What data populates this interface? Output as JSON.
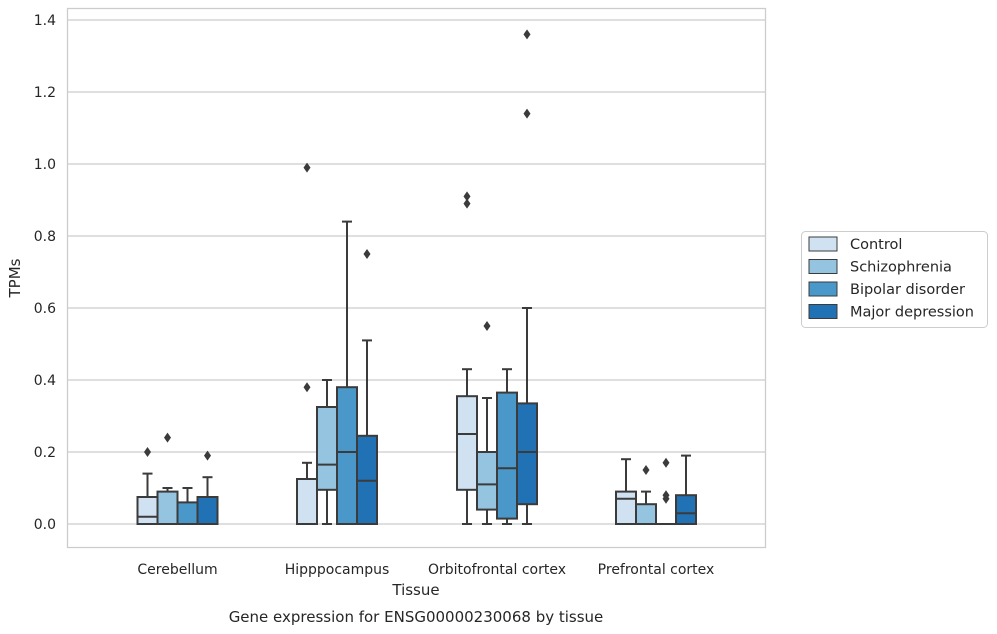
{
  "caption": "Gene expression for ENSG00000230068 by tissue",
  "chart_data": {
    "type": "box",
    "title": "",
    "xlabel": "Tissue",
    "ylabel": "TPMs",
    "ylim": [
      -0.065,
      1.43
    ],
    "yticks": [
      0.0,
      0.2,
      0.4,
      0.6,
      0.8,
      1.0,
      1.2,
      1.4
    ],
    "ytick_labels": [
      "0.0",
      "0.2",
      "0.4",
      "0.6",
      "0.8",
      "1.0",
      "1.2",
      "1.4"
    ],
    "grid": "horizontal",
    "legend_position": "right",
    "categories": [
      "Cerebellum",
      "Hipppocampus",
      "Orbitofrontal cortex",
      "Prefrontal cortex"
    ],
    "series": [
      {
        "name": "Control",
        "color": "#d0e1f2",
        "boxes": [
          {
            "whislo": 0.0,
            "q1": 0.0,
            "med": 0.02,
            "q3": 0.075,
            "whishi": 0.14,
            "fliers": [
              0.2
            ]
          },
          {
            "whislo": 0.0,
            "q1": 0.0,
            "med": 0.0,
            "q3": 0.125,
            "whishi": 0.17,
            "fliers": [
              0.38,
              0.99
            ]
          },
          {
            "whislo": 0.0,
            "q1": 0.095,
            "med": 0.25,
            "q3": 0.355,
            "whishi": 0.43,
            "fliers": [
              0.89,
              0.91
            ]
          },
          {
            "whislo": 0.0,
            "q1": 0.0,
            "med": 0.07,
            "q3": 0.09,
            "whishi": 0.18,
            "fliers": []
          }
        ]
      },
      {
        "name": "Schizophrenia",
        "color": "#94c4df",
        "boxes": [
          {
            "whislo": 0.0,
            "q1": 0.0,
            "med": 0.0,
            "q3": 0.09,
            "whishi": 0.1,
            "fliers": [
              0.24
            ]
          },
          {
            "whislo": 0.0,
            "q1": 0.095,
            "med": 0.165,
            "q3": 0.325,
            "whishi": 0.4,
            "fliers": []
          },
          {
            "whislo": 0.0,
            "q1": 0.04,
            "med": 0.11,
            "q3": 0.2,
            "whishi": 0.35,
            "fliers": [
              0.55
            ]
          },
          {
            "whislo": 0.0,
            "q1": 0.0,
            "med": 0.0,
            "q3": 0.055,
            "whishi": 0.09,
            "fliers": [
              0.15
            ]
          }
        ]
      },
      {
        "name": "Bipolar disorder",
        "color": "#4a98c9",
        "boxes": [
          {
            "whislo": 0.0,
            "q1": 0.0,
            "med": 0.0,
            "q3": 0.06,
            "whishi": 0.1,
            "fliers": []
          },
          {
            "whislo": 0.0,
            "q1": 0.0,
            "med": 0.2,
            "q3": 0.38,
            "whishi": 0.84,
            "fliers": []
          },
          {
            "whislo": 0.0,
            "q1": 0.015,
            "med": 0.155,
            "q3": 0.365,
            "whishi": 0.43,
            "fliers": []
          },
          {
            "whislo": 0.0,
            "q1": 0.0,
            "med": 0.0,
            "q3": 0.0,
            "whishi": 0.0,
            "fliers": [
              0.07,
              0.08,
              0.17
            ]
          }
        ]
      },
      {
        "name": "Major depression",
        "color": "#2171b5",
        "boxes": [
          {
            "whislo": 0.0,
            "q1": 0.0,
            "med": 0.0,
            "q3": 0.075,
            "whishi": 0.13,
            "fliers": [
              0.19
            ]
          },
          {
            "whislo": 0.0,
            "q1": 0.0,
            "med": 0.12,
            "q3": 0.245,
            "whishi": 0.51,
            "fliers": [
              0.75
            ]
          },
          {
            "whislo": 0.0,
            "q1": 0.055,
            "med": 0.2,
            "q3": 0.335,
            "whishi": 0.6,
            "fliers": [
              1.14,
              1.36
            ]
          },
          {
            "whislo": 0.0,
            "q1": 0.0,
            "med": 0.03,
            "q3": 0.08,
            "whishi": 0.19,
            "fliers": []
          }
        ]
      }
    ]
  }
}
